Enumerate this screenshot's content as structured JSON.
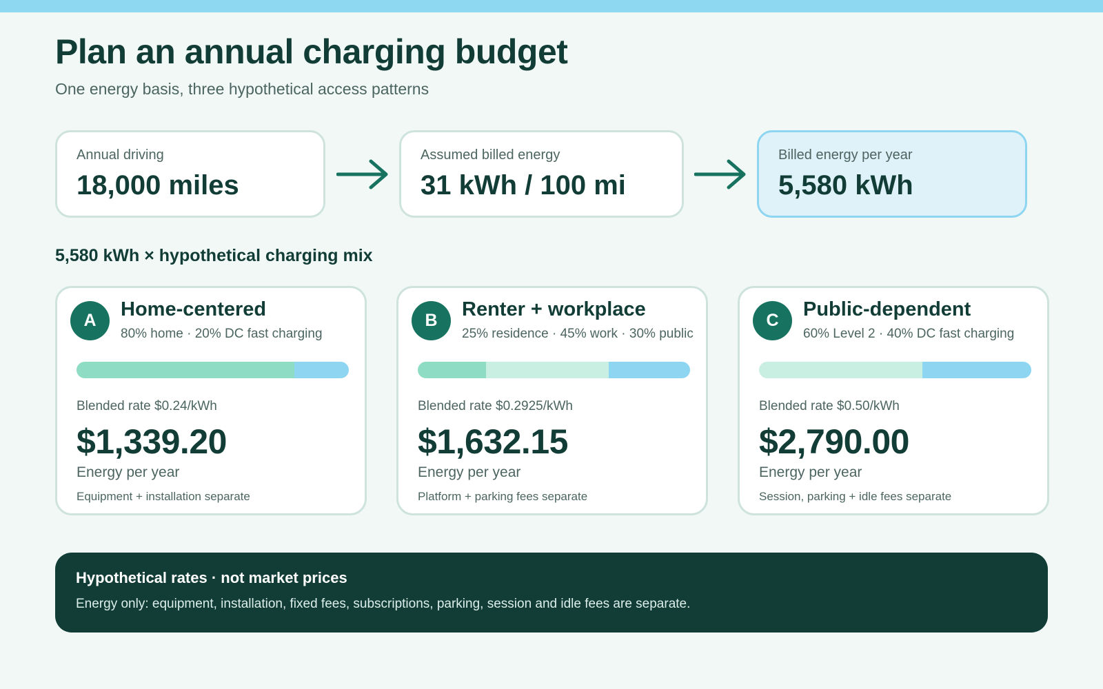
{
  "header": {
    "title": "Plan an annual charging budget",
    "subtitle": "One energy basis, three hypothetical access patterns"
  },
  "flow": [
    {
      "label": "Annual driving",
      "value": "18,000 miles"
    },
    {
      "label": "Assumed billed energy",
      "value": "31 kWh / 100 mi"
    },
    {
      "label": "Billed energy per year",
      "value": "5,580 kWh"
    }
  ],
  "mix_heading": "5,580 kWh × hypothetical charging mix",
  "colors": {
    "home": "#8fdcc4",
    "residence": "#8fdcc4",
    "work_level2": "#c9efe2",
    "dc_public": "#8ed5f1",
    "badge": "#17735f",
    "footer_bg": "#123d36"
  },
  "scenarios": [
    {
      "badge": "A",
      "title": "Home-centered",
      "mix": "80% home · 20% DC fast charging",
      "segments": [
        {
          "share": 0.8,
          "color": "#8fdcc4"
        },
        {
          "share": 0.2,
          "color": "#8ed5f1"
        }
      ],
      "rate": "Blended rate $0.24/kWh",
      "amount": "$1,339.20",
      "amount_label": "Energy per year",
      "note": "Equipment + installation separate"
    },
    {
      "badge": "B",
      "title": "Renter + workplace",
      "mix": "25% residence · 45% work · 30% public",
      "segments": [
        {
          "share": 0.25,
          "color": "#8fdcc4"
        },
        {
          "share": 0.45,
          "color": "#c9efe2"
        },
        {
          "share": 0.3,
          "color": "#8ed5f1"
        }
      ],
      "rate": "Blended rate $0.2925/kWh",
      "amount": "$1,632.15",
      "amount_label": "Energy per year",
      "note": "Platform + parking fees separate"
    },
    {
      "badge": "C",
      "title": "Public-dependent",
      "mix": "60% Level 2 · 40% DC fast charging",
      "segments": [
        {
          "share": 0.6,
          "color": "#c9efe2"
        },
        {
          "share": 0.4,
          "color": "#8ed5f1"
        }
      ],
      "rate": "Blended rate $0.50/kWh",
      "amount": "$2,790.00",
      "amount_label": "Energy per year",
      "note": "Session, parking + idle fees separate"
    }
  ],
  "footer": {
    "title": "Hypothetical rates · not market prices",
    "text": "Energy only: equipment, installation, fixed fees, subscriptions, parking, session and idle fees are separate."
  }
}
